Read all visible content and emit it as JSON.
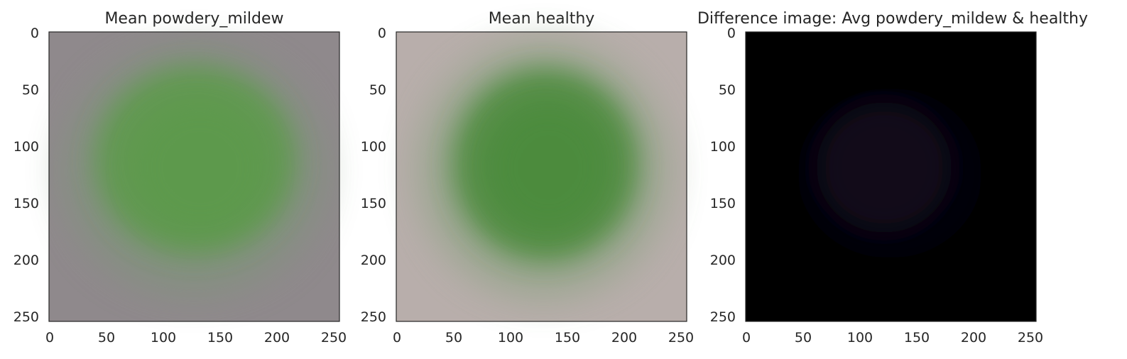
{
  "colors": {
    "axis_text": "#262626",
    "frame": "#262626",
    "background": "#ffffff"
  },
  "chart_data": [
    {
      "type": "image",
      "title": "Mean powdery_mildew",
      "xlim": [
        0,
        256
      ],
      "ylim": [
        256,
        0
      ],
      "x_ticks": [
        0,
        50,
        100,
        150,
        200,
        250
      ],
      "y_ticks": [
        0,
        50,
        100,
        150,
        200,
        250
      ],
      "image_description_colors": {
        "background": "#8f898c",
        "leaf_center": "#5f9a4e",
        "leaf_edge": "#7e9479"
      }
    },
    {
      "type": "image",
      "title": "Mean healthy",
      "xlim": [
        0,
        256
      ],
      "ylim": [
        256,
        0
      ],
      "x_ticks": [
        0,
        50,
        100,
        150,
        200,
        250
      ],
      "y_ticks": [
        0,
        50,
        100,
        150,
        200,
        250
      ],
      "image_description_colors": {
        "background": "#b8aeab",
        "leaf_center": "#4f8c3f",
        "leaf_edge": "#8ea384"
      }
    },
    {
      "type": "image",
      "title": "Difference image: Avg powdery_mildew & healthy",
      "xlim": [
        0,
        256
      ],
      "ylim": [
        256,
        0
      ],
      "x_ticks": [
        0,
        50,
        100,
        150,
        200,
        250
      ],
      "y_ticks": [
        0,
        50,
        100,
        150,
        200,
        250
      ],
      "image_description_colors": {
        "background": "#000000",
        "leaf_center": "#170b1c",
        "leaf_edge": "#050207"
      }
    }
  ]
}
